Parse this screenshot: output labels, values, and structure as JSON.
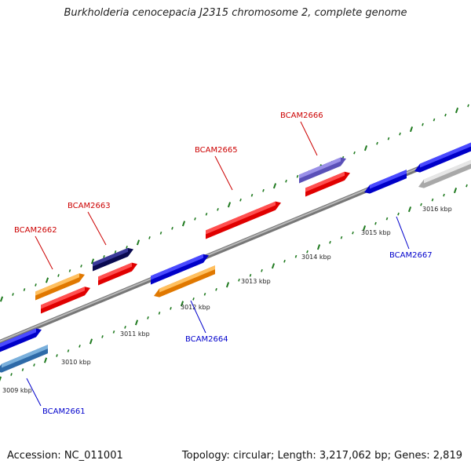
{
  "title": "Burkholderia cenocepacia J2315 chromosome 2, complete genome",
  "footer": {
    "accession": "Accession: NC_011001",
    "summary": "Topology: circular; Length: 3,217,062 bp; Genes: 2,819"
  },
  "colors": {
    "backbone": "#8a8a8a",
    "tick": "#1f7a1f",
    "label_forward": "#cc0000",
    "label_reverse": "#0000cc",
    "red": "#ff1a1a",
    "orange": "#ff9a1a",
    "blue": "#1a1aee",
    "navy": "#14146e",
    "lavender": "#7a70d6",
    "steelblue": "#4a86c0",
    "gray": "#c4c4c4"
  },
  "scale_labels": [
    "3009 kbp",
    "3010 kbp",
    "3011 kbp",
    "3012 kbp",
    "3013 kbp",
    "3014 kbp",
    "3015 kbp",
    "3016 kbp"
  ],
  "genes": [
    {
      "id": "BCAM2661",
      "strand": "reverse",
      "labeled": true,
      "color": "steelblue"
    },
    {
      "id": "BCAM2662",
      "strand": "forward",
      "labeled": true,
      "color": "orange"
    },
    {
      "id": "BCAM2663",
      "strand": "forward",
      "labeled": true,
      "color": "navy"
    },
    {
      "id": "BCAM2664",
      "strand": "reverse",
      "labeled": true,
      "color": "orange"
    },
    {
      "id": "BCAM2665",
      "strand": "forward",
      "labeled": true,
      "color": "red"
    },
    {
      "id": "BCAM2666",
      "strand": "forward",
      "labeled": true,
      "color": "lavender"
    },
    {
      "id": "BCAM2667",
      "strand": "reverse",
      "labeled": true,
      "color": "blue"
    }
  ]
}
